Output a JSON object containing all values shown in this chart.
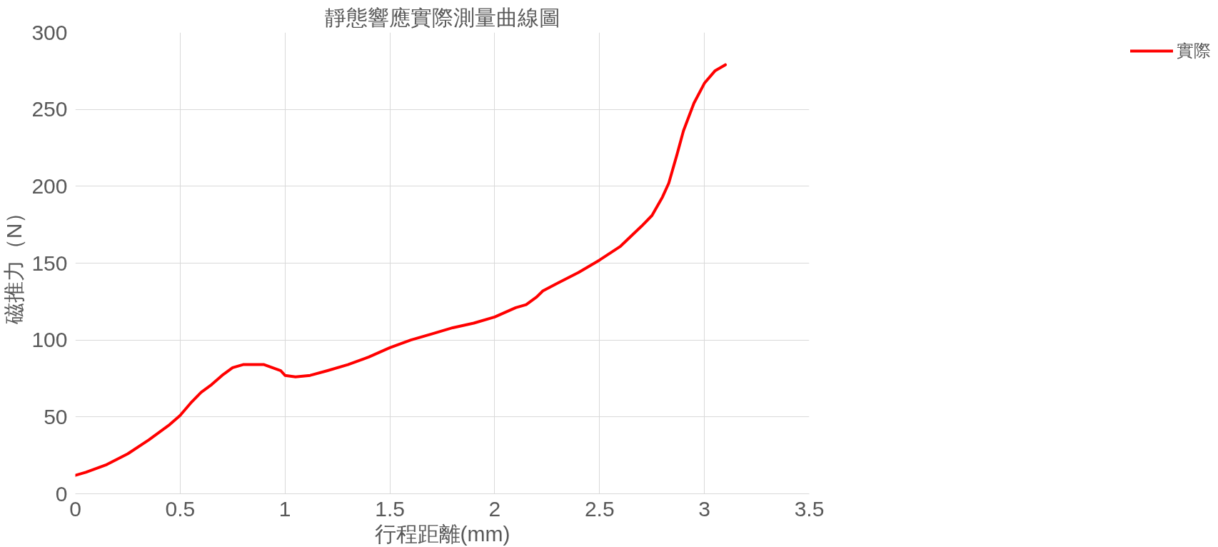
{
  "chart_data": {
    "type": "line",
    "title": "靜態響應實際測量曲線圖",
    "xlabel": "行程距離(mm)",
    "ylabel": "磁推力（N）",
    "xlim": [
      0,
      3.5
    ],
    "xticks": [
      0,
      0.5,
      1,
      1.5,
      2,
      2.5,
      3,
      3.5
    ],
    "ylim": [
      0,
      300
    ],
    "yticks": [
      0,
      50,
      100,
      150,
      200,
      250,
      300
    ],
    "grid": true,
    "legend": "right",
    "marker": "none",
    "line_style": "solid",
    "series": [
      {
        "name": "實際",
        "color": "#ff0000",
        "x": [
          0,
          0.05,
          0.15,
          0.25,
          0.35,
          0.45,
          0.5,
          0.55,
          0.6,
          0.65,
          0.7,
          0.75,
          0.8,
          0.9,
          0.98,
          1.0,
          1.05,
          1.12,
          1.2,
          1.3,
          1.4,
          1.5,
          1.6,
          1.7,
          1.8,
          1.9,
          2.0,
          2.1,
          2.15,
          2.2,
          2.23,
          2.3,
          2.4,
          2.5,
          2.6,
          2.7,
          2.75,
          2.8,
          2.83,
          2.87,
          2.9,
          2.95,
          3.0,
          3.05,
          3.1
        ],
        "values": [
          12,
          14,
          19,
          26,
          35,
          45,
          51,
          59,
          66,
          71,
          77,
          82,
          84,
          84,
          80,
          77,
          76,
          77,
          80,
          84,
          89,
          95,
          100,
          104,
          108,
          111,
          115,
          121,
          123,
          128,
          132,
          137,
          144,
          152,
          161,
          174,
          181,
          193,
          202,
          221,
          236,
          254,
          267,
          275,
          279
        ]
      }
    ]
  }
}
